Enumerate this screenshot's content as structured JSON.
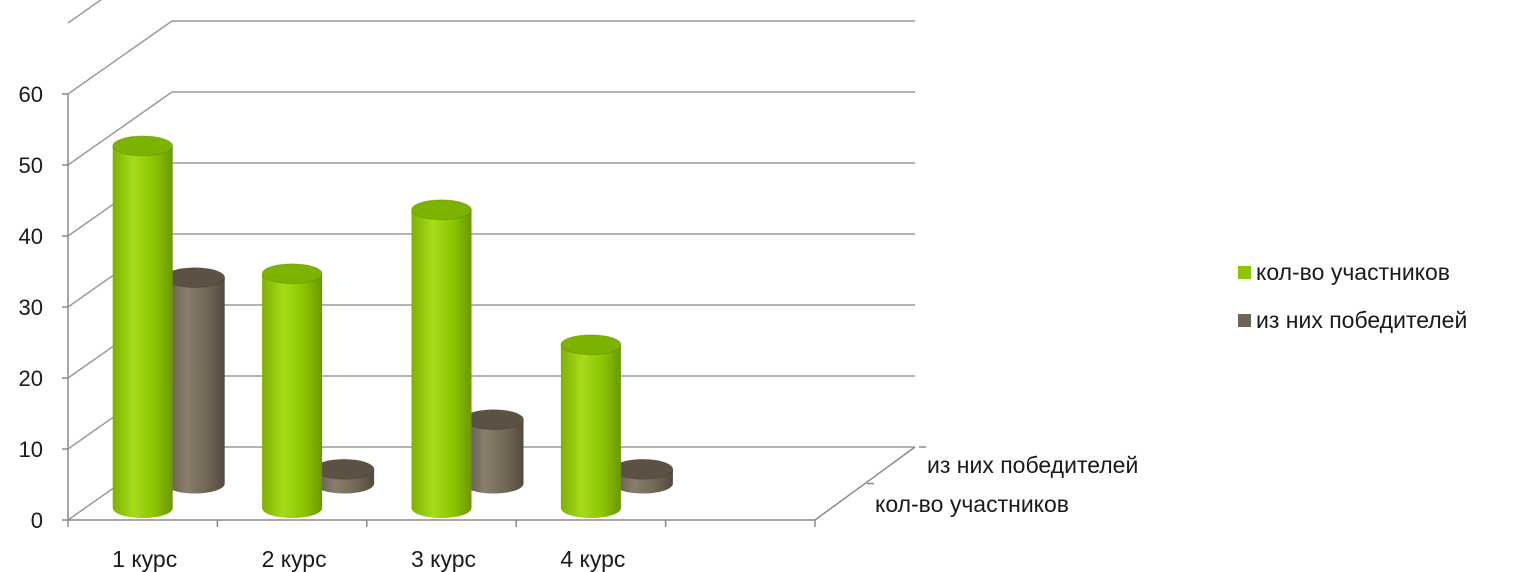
{
  "chart_data": {
    "type": "bar",
    "style": "3d-cylinder",
    "categories": [
      "1 курс",
      "2 курс",
      "3 курс",
      "4 курс"
    ],
    "series": [
      {
        "name": "кол-во участников",
        "values": [
          51,
          33,
          42,
          23
        ],
        "color": "#8fc400"
      },
      {
        "name": "из них победителей",
        "values": [
          29,
          2,
          9,
          2
        ],
        "color": "#6e6455"
      }
    ],
    "ylim": [
      0,
      60
    ],
    "yticks": [
      0,
      10,
      20,
      30,
      40,
      50,
      60
    ],
    "grid": true,
    "legend": "right"
  }
}
